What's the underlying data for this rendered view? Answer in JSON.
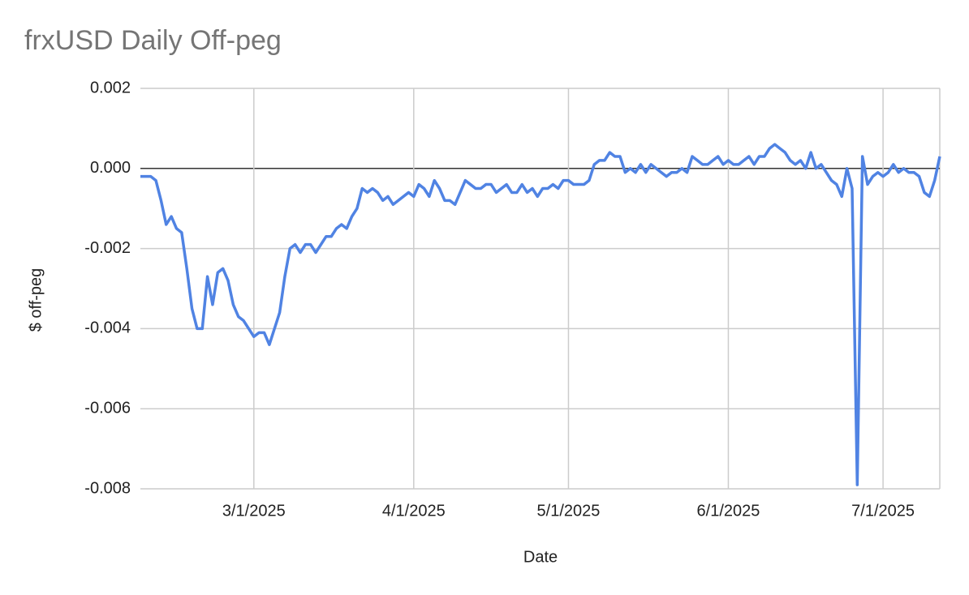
{
  "chart_data": {
    "type": "line",
    "title": "frxUSD Daily Off-peg",
    "x_label": "Date",
    "y_label": "$ off-peg",
    "x": [
      "2/7/2025",
      "2/8/2025",
      "2/9/2025",
      "2/10/2025",
      "2/11/2025",
      "2/12/2025",
      "2/13/2025",
      "2/14/2025",
      "2/15/2025",
      "2/16/2025",
      "2/17/2025",
      "2/18/2025",
      "2/19/2025",
      "2/20/2025",
      "2/21/2025",
      "2/22/2025",
      "2/23/2025",
      "2/24/2025",
      "2/25/2025",
      "2/26/2025",
      "2/27/2025",
      "2/28/2025",
      "3/1/2025",
      "3/2/2025",
      "3/3/2025",
      "3/4/2025",
      "3/5/2025",
      "3/6/2025",
      "3/7/2025",
      "3/8/2025",
      "3/9/2025",
      "3/10/2025",
      "3/11/2025",
      "3/12/2025",
      "3/13/2025",
      "3/14/2025",
      "3/15/2025",
      "3/16/2025",
      "3/17/2025",
      "3/18/2025",
      "3/19/2025",
      "3/20/2025",
      "3/21/2025",
      "3/22/2025",
      "3/23/2025",
      "3/24/2025",
      "3/25/2025",
      "3/26/2025",
      "3/27/2025",
      "3/28/2025",
      "3/29/2025",
      "3/30/2025",
      "3/31/2025",
      "4/1/2025",
      "4/2/2025",
      "4/3/2025",
      "4/4/2025",
      "4/5/2025",
      "4/6/2025",
      "4/7/2025",
      "4/8/2025",
      "4/9/2025",
      "4/10/2025",
      "4/11/2025",
      "4/12/2025",
      "4/13/2025",
      "4/14/2025",
      "4/15/2025",
      "4/16/2025",
      "4/17/2025",
      "4/18/2025",
      "4/19/2025",
      "4/20/2025",
      "4/21/2025",
      "4/22/2025",
      "4/23/2025",
      "4/24/2025",
      "4/25/2025",
      "4/26/2025",
      "4/27/2025",
      "4/28/2025",
      "4/29/2025",
      "4/30/2025",
      "5/1/2025",
      "5/2/2025",
      "5/3/2025",
      "5/4/2025",
      "5/5/2025",
      "5/6/2025",
      "5/7/2025",
      "5/8/2025",
      "5/9/2025",
      "5/10/2025",
      "5/11/2025",
      "5/12/2025",
      "5/13/2025",
      "5/14/2025",
      "5/15/2025",
      "5/16/2025",
      "5/17/2025",
      "5/18/2025",
      "5/19/2025",
      "5/20/2025",
      "5/21/2025",
      "5/22/2025",
      "5/23/2025",
      "5/24/2025",
      "5/25/2025",
      "5/26/2025",
      "5/27/2025",
      "5/28/2025",
      "5/29/2025",
      "5/30/2025",
      "5/31/2025",
      "6/1/2025",
      "6/2/2025",
      "6/3/2025",
      "6/4/2025",
      "6/5/2025",
      "6/6/2025",
      "6/7/2025",
      "6/8/2025",
      "6/9/2025",
      "6/10/2025",
      "6/11/2025",
      "6/12/2025",
      "6/13/2025",
      "6/14/2025",
      "6/15/2025",
      "6/16/2025",
      "6/17/2025",
      "6/18/2025",
      "6/19/2025",
      "6/20/2025",
      "6/21/2025",
      "6/22/2025",
      "6/23/2025",
      "6/24/2025",
      "6/25/2025",
      "6/26/2025",
      "6/27/2025",
      "6/28/2025",
      "6/29/2025",
      "6/30/2025",
      "7/1/2025",
      "7/2/2025",
      "7/3/2025",
      "7/4/2025",
      "7/5/2025",
      "7/6/2025",
      "7/7/2025",
      "7/8/2025",
      "7/9/2025",
      "7/10/2025",
      "7/11/2025",
      "7/12/2025"
    ],
    "series": [
      {
        "name": "$ off-peg",
        "color": "#5083e3",
        "values": [
          -0.0002,
          -0.0002,
          -0.0002,
          -0.0003,
          -0.0008,
          -0.0014,
          -0.0012,
          -0.0015,
          -0.0016,
          -0.0025,
          -0.0035,
          -0.004,
          -0.004,
          -0.0027,
          -0.0034,
          -0.0026,
          -0.0025,
          -0.0028,
          -0.0034,
          -0.0037,
          -0.0038,
          -0.004,
          -0.0042,
          -0.0041,
          -0.0041,
          -0.0044,
          -0.004,
          -0.0036,
          -0.0027,
          -0.002,
          -0.0019,
          -0.0021,
          -0.0019,
          -0.0019,
          -0.0021,
          -0.0019,
          -0.0017,
          -0.0017,
          -0.0015,
          -0.0014,
          -0.0015,
          -0.0012,
          -0.001,
          -0.0005,
          -0.0006,
          -0.0005,
          -0.0006,
          -0.0008,
          -0.0007,
          -0.0009,
          -0.0008,
          -0.0007,
          -0.0006,
          -0.0007,
          -0.0004,
          -0.0005,
          -0.0007,
          -0.0003,
          -0.0005,
          -0.0008,
          -0.0008,
          -0.0009,
          -0.0006,
          -0.0003,
          -0.0004,
          -0.0005,
          -0.0005,
          -0.0004,
          -0.0004,
          -0.0006,
          -0.0005,
          -0.0004,
          -0.0006,
          -0.0006,
          -0.0004,
          -0.0006,
          -0.0005,
          -0.0007,
          -0.0005,
          -0.0005,
          -0.0004,
          -0.0005,
          -0.0003,
          -0.0003,
          -0.0004,
          -0.0004,
          -0.0004,
          -0.0003,
          0.0001,
          0.0002,
          0.0002,
          0.0004,
          0.0003,
          0.0003,
          -0.0001,
          0.0,
          -0.0001,
          0.0001,
          -0.0001,
          0.0001,
          0.0,
          -0.0001,
          -0.0002,
          -0.0001,
          -0.0001,
          0.0,
          -0.0001,
          0.0003,
          0.0002,
          0.0001,
          0.0001,
          0.0002,
          0.0003,
          0.0001,
          0.0002,
          0.0001,
          0.0001,
          0.0002,
          0.0003,
          0.0001,
          0.0003,
          0.0003,
          0.0005,
          0.0006,
          0.0005,
          0.0004,
          0.0002,
          0.0001,
          0.0002,
          0.0,
          0.0004,
          0.0,
          0.0001,
          -0.0001,
          -0.0003,
          -0.0004,
          -0.0007,
          0.0,
          -0.0005,
          -0.0079,
          0.0003,
          -0.0004,
          -0.0002,
          -0.0001,
          -0.0002,
          -0.0001,
          0.0001,
          -0.0001,
          0.0,
          -0.0001,
          -0.0001,
          -0.0002,
          -0.0006,
          -0.0007,
          -0.0003,
          0.0003
        ]
      }
    ],
    "xlim": [
      "2/7/2025",
      "7/12/2025"
    ],
    "xticks": [
      "3/1/2025",
      "4/1/2025",
      "5/1/2025",
      "6/1/2025",
      "7/1/2025"
    ],
    "ylim": [
      -0.008,
      0.002
    ],
    "yticks": [
      -0.008,
      -0.006,
      -0.004,
      -0.002,
      {
        "value": 0,
        "label": "0.000"
      },
      0.002
    ],
    "grid": true
  }
}
